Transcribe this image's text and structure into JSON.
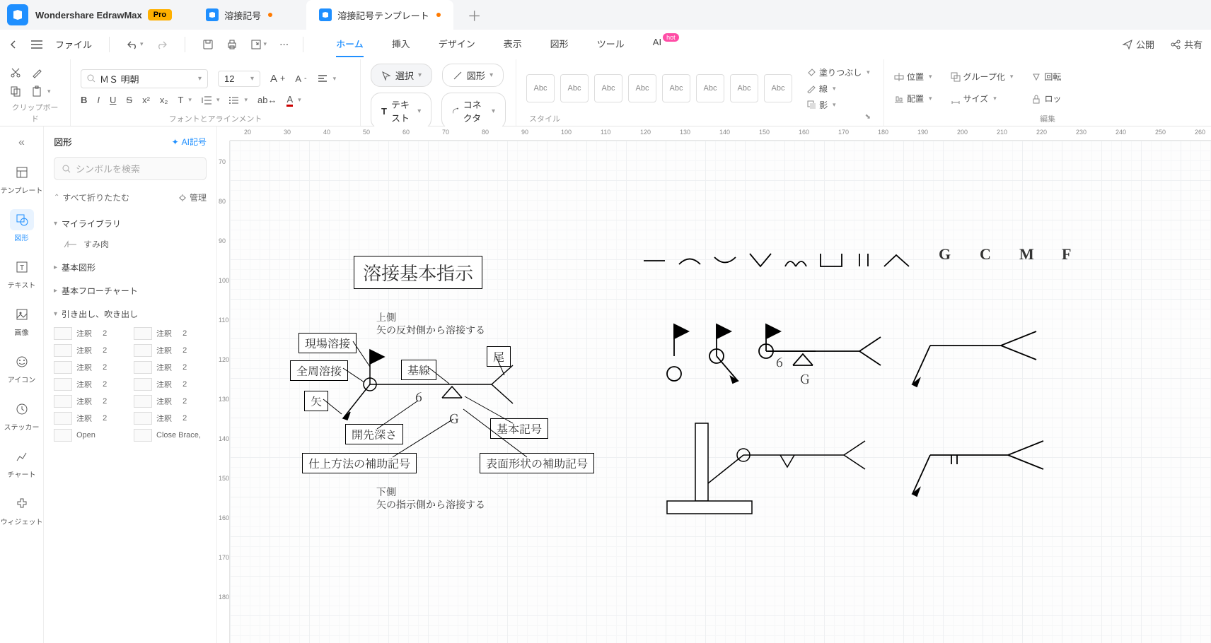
{
  "app": {
    "name": "Wondershare EdrawMax",
    "badge": "Pro"
  },
  "tabs": [
    {
      "label": "溶接記号",
      "modified": true,
      "active": false
    },
    {
      "label": "溶接記号テンプレート",
      "modified": true,
      "active": true
    }
  ],
  "menubar": {
    "file": "ファイル",
    "items": [
      "ホーム",
      "挿入",
      "デザイン",
      "表示",
      "図形",
      "ツール",
      "AI"
    ],
    "active": "ホーム",
    "hot": "hot",
    "publish": "公開",
    "share": "共有"
  },
  "ribbon": {
    "clipboard": "クリップボード",
    "font_align": "フォントとアラインメント",
    "tools": "ツール",
    "style": "スタイル",
    "edit": "編集",
    "font_name": "ＭＳ 明朝",
    "font_size": "12",
    "select": "選択",
    "shape": "図形",
    "text": "テキスト",
    "connector": "コネクタ",
    "style_sample": "Abc",
    "fill": "塗りつぶし",
    "line": "線",
    "shadow": "影",
    "position": "位置",
    "align": "配置",
    "group": "グループ化",
    "size": "サイズ",
    "flip": "回転",
    "lock": "ロッ"
  },
  "leftnav": {
    "items": [
      {
        "id": "template",
        "label": "テンプレート"
      },
      {
        "id": "shape",
        "label": "図形",
        "active": true
      },
      {
        "id": "text",
        "label": "テキスト"
      },
      {
        "id": "image",
        "label": "画像"
      },
      {
        "id": "icon",
        "label": "アイコン"
      },
      {
        "id": "sticker",
        "label": "ステッカー"
      },
      {
        "id": "chart",
        "label": "チャート"
      },
      {
        "id": "widget",
        "label": "ウィジェット"
      }
    ]
  },
  "shapepanel": {
    "title": "図形",
    "ai": "AI記号",
    "search_placeholder": "シンボルを検索",
    "collapse_all": "すべて折りたたむ",
    "manage": "管理",
    "cats": {
      "mylib": "マイライブラリ",
      "sumi": "すみ肉",
      "basic_shape": "基本図形",
      "basic_flow": "基本フローチャート",
      "callout": "引き出し、吹き出し"
    },
    "annot": "注釈",
    "annot_num": "2",
    "open": "Open",
    "close": "Close Brace,"
  },
  "canvas": {
    "title": "溶接基本指示",
    "labels": {
      "field_weld": "現場溶接",
      "all_around": "全周溶接",
      "arrow": "矢",
      "ref_line": "基線",
      "tail": "尾",
      "groove_depth": "開先深さ",
      "finish_aux": "仕上方法の補助記号",
      "basic_symbol": "基本記号",
      "surface_aux": "表面形状の補助記号"
    },
    "texts": {
      "top1": "上側",
      "top2": "矢の反対側から溶接する",
      "bottom1": "下側",
      "bottom2": "矢の指示側から溶接する",
      "six": "6",
      "G": "G",
      "six2": "6",
      "G2": "G"
    },
    "letters": [
      "G",
      "C",
      "M",
      "F"
    ],
    "ruler_h": [
      "20",
      "30",
      "40",
      "50",
      "60",
      "70",
      "80",
      "90",
      "100",
      "110",
      "120",
      "130",
      "140",
      "150",
      "160",
      "170",
      "180",
      "190",
      "200",
      "210",
      "220",
      "230",
      "240",
      "250",
      "260"
    ],
    "ruler_v": [
      "70",
      "80",
      "90",
      "100",
      "110",
      "120",
      "130",
      "140",
      "150",
      "160",
      "170",
      "180"
    ]
  },
  "colors": {
    "primary": "#1f8fff",
    "accent": "#ff7a00",
    "hot": "#ff4da6",
    "pro": "#ffb000"
  }
}
